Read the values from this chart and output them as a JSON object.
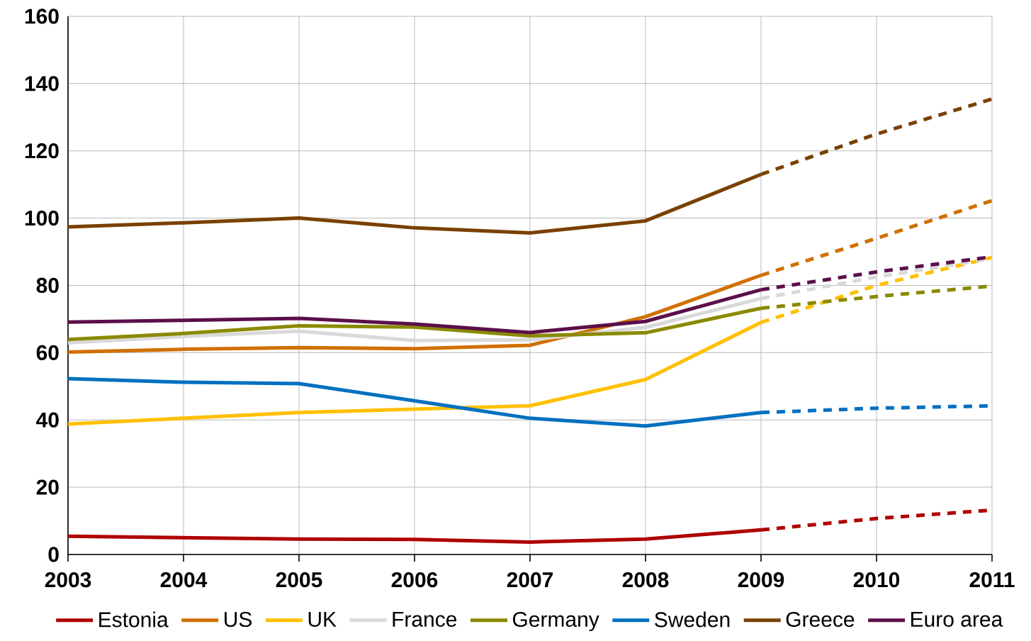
{
  "chart_data": {
    "type": "line",
    "x": [
      2003,
      2004,
      2005,
      2006,
      2007,
      2008,
      2009,
      2010,
      2011
    ],
    "xlim": [
      2003,
      2011
    ],
    "xticks": [
      2003,
      2004,
      2005,
      2006,
      2007,
      2008,
      2009,
      2010,
      2011
    ],
    "ylim": [
      0,
      160
    ],
    "yticks": [
      0,
      20,
      40,
      60,
      80,
      100,
      120,
      140,
      160
    ],
    "grid": true,
    "legend": "bottom",
    "line_style": "solid",
    "series": [
      {
        "name": "Estonia",
        "color": "#b00000",
        "values": [
          5.4,
          5.0,
          4.6,
          4.5,
          3.7,
          4.6,
          7.3,
          null,
          null
        ]
      },
      {
        "name": "US",
        "color": "#d07000",
        "values": [
          60.2,
          61.0,
          61.5,
          61.2,
          62.2,
          70.7,
          83.0,
          null,
          null
        ]
      },
      {
        "name": "UK",
        "color": "#ffc000",
        "values": [
          38.8,
          40.5,
          42.2,
          43.2,
          44.2,
          52.0,
          69.0,
          null,
          null
        ]
      },
      {
        "name": "France",
        "color": "#d9d9d9",
        "values": [
          62.9,
          64.8,
          66.4,
          63.6,
          63.8,
          67.5,
          76.1,
          null,
          null
        ]
      },
      {
        "name": "Germany",
        "color": "#8a8a00",
        "values": [
          63.9,
          65.7,
          68.0,
          67.6,
          65.0,
          65.9,
          73.2,
          null,
          null
        ]
      },
      {
        "name": "Sweden",
        "color": "#0070c0",
        "values": [
          52.3,
          51.2,
          50.8,
          45.7,
          40.5,
          38.2,
          42.2,
          null,
          null
        ]
      },
      {
        "name": "Greece",
        "color": "#7a4000",
        "values": [
          97.4,
          98.6,
          100.0,
          97.1,
          95.6,
          99.2,
          113.0,
          null,
          null
        ]
      },
      {
        "name": "Euro area",
        "color": "#5b0f4a",
        "values": [
          69.1,
          69.6,
          70.2,
          68.5,
          66.0,
          69.3,
          78.7,
          null,
          null
        ]
      },
      {
        "color": "#b00000",
        "line_style": "dashed",
        "values": [
          null,
          null,
          null,
          null,
          null,
          null,
          7.3,
          10.7,
          13.2
        ]
      },
      {
        "color": "#d07000",
        "line_style": "dashed",
        "values": [
          null,
          null,
          null,
          null,
          null,
          null,
          83.0,
          94.0,
          105.2
        ]
      },
      {
        "color": "#ffc000",
        "line_style": "dashed",
        "values": [
          null,
          null,
          null,
          null,
          null,
          null,
          69.0,
          80.0,
          88.3
        ]
      },
      {
        "color": "#d9d9d9",
        "line_style": "dashed",
        "values": [
          null,
          null,
          null,
          null,
          null,
          null,
          76.1,
          82.5,
          88.0
        ]
      },
      {
        "color": "#8a8a00",
        "line_style": "dashed",
        "values": [
          null,
          null,
          null,
          null,
          null,
          null,
          73.2,
          76.7,
          79.8
        ]
      },
      {
        "color": "#0070c0",
        "line_style": "dashed",
        "values": [
          null,
          null,
          null,
          null,
          null,
          null,
          42.2,
          43.5,
          44.2
        ]
      },
      {
        "color": "#7a4000",
        "line_style": "dashed",
        "values": [
          null,
          null,
          null,
          null,
          null,
          null,
          113.0,
          125.0,
          135.4
        ]
      },
      {
        "color": "#5b0f4a",
        "line_style": "dashed",
        "values": [
          null,
          null,
          null,
          null,
          null,
          null,
          78.7,
          84.0,
          88.5
        ]
      }
    ]
  }
}
